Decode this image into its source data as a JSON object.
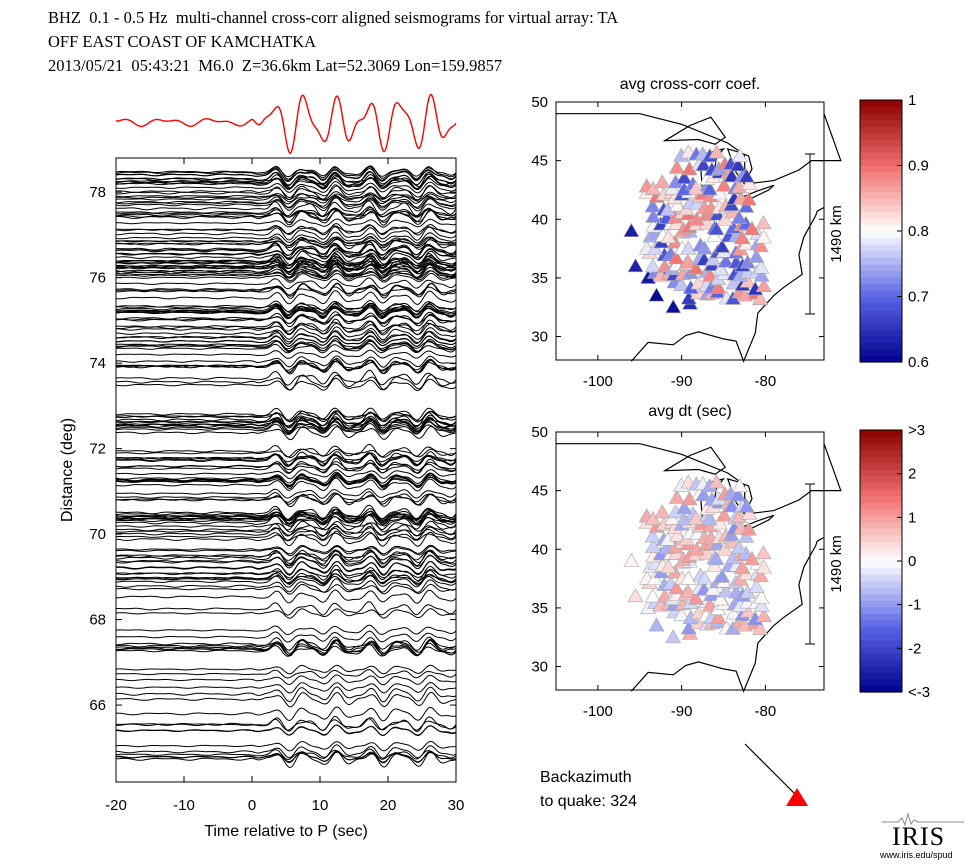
{
  "header": {
    "line1": "BHZ  0.1 - 0.5 Hz  multi-channel cross-corr aligned seismograms for virtual array: TA",
    "line2": "OFF EAST COAST OF KAMCHATKA",
    "line3": "2013/05/21  05:43:21  M6.0  Z=36.6km Lat=52.3069 Lon=159.9857"
  },
  "chart_data": [
    {
      "type": "line",
      "name": "record-section",
      "xlabel": "Time relative to P (sec)",
      "ylabel": "Distance (deg)",
      "xlim": [
        -20,
        30
      ],
      "ylim": [
        64.2,
        78.8
      ],
      "x_ticks": [
        "-20",
        "-10",
        "0",
        "10",
        "20",
        "30"
      ],
      "y_ticks": [
        "66",
        "68",
        "70",
        "72",
        "74",
        "76",
        "78"
      ],
      "trace_color": "#000000",
      "stack_color": "#ff0000"
    },
    {
      "type": "scatter",
      "name": "cross-corr-map",
      "title": "avg cross-corr coef.",
      "xlim": [
        -105,
        -73
      ],
      "ylim": [
        28,
        50
      ],
      "x_ticks": [
        "-100",
        "-90",
        "-80"
      ],
      "y_ticks": [
        "30",
        "35",
        "40",
        "45",
        "50"
      ],
      "scale_bar_label": "1490 km",
      "colorbar": {
        "min": 0.6,
        "max": 1.0,
        "ticks": [
          "0.6",
          "0.7",
          "0.8",
          "0.9",
          "1"
        ]
      }
    },
    {
      "type": "scatter",
      "name": "avg-dt-map",
      "title": "avg dt (sec)",
      "xlim": [
        -105,
        -73
      ],
      "ylim": [
        28,
        50
      ],
      "x_ticks": [
        "-100",
        "-90",
        "-80"
      ],
      "y_ticks": [
        "30",
        "35",
        "40",
        "45",
        "50"
      ],
      "scale_bar_label": "1490 km",
      "colorbar": {
        "min": -3,
        "max": 3,
        "ticks": [
          "<-3",
          "-2",
          "-1",
          "0",
          "1",
          "2",
          ">3"
        ]
      }
    }
  ],
  "backazimuth": {
    "line1": "Backazimuth",
    "line2": "to quake:  324",
    "value": 324
  },
  "logo": {
    "word": "IRIS",
    "url": "www.iris.edu/spud"
  }
}
